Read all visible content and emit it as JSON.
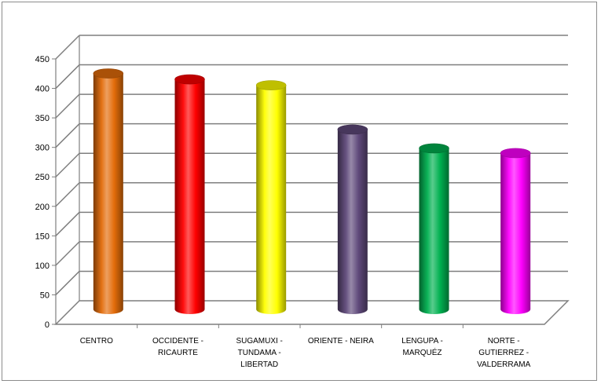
{
  "chart_data": {
    "type": "bar",
    "style": "3d-cylinder",
    "title": "",
    "xlabel": "",
    "ylabel": "",
    "ylim": [
      0,
      450
    ],
    "yticks": [
      0,
      50,
      100,
      150,
      200,
      250,
      300,
      350,
      400,
      450
    ],
    "grid": true,
    "legend": "none",
    "categories": [
      [
        "CENTRO"
      ],
      [
        "OCCIDENTE -",
        "RICAURTE"
      ],
      [
        "SUGAMUXI  -",
        "TUNDAMA -",
        "LIBERTAD"
      ],
      [
        "ORIENTE - NEIRA"
      ],
      [
        "LENGUPA  -",
        "MARQUÉZ"
      ],
      [
        "NORTE -",
        "GUTIERREZ -",
        "VALDERRAMA"
      ]
    ],
    "values": [
      400,
      390,
      380,
      305,
      273,
      265
    ],
    "colors": [
      "#e36c0a",
      "#ff0000",
      "#ffff00",
      "#5f497a",
      "#00b050",
      "#ff00ff"
    ]
  }
}
